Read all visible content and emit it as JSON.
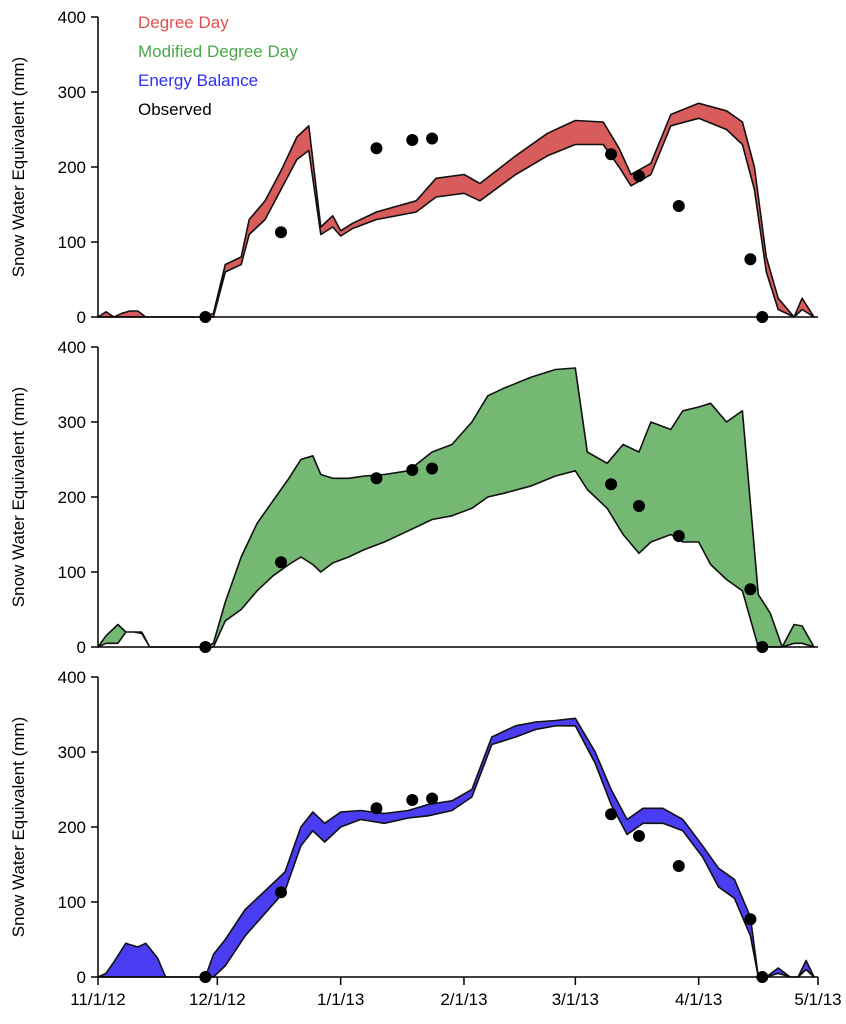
{
  "chart_data": [
    {
      "type": "area",
      "ylabel": "Snow Water Equivalent (mm)",
      "ylim": [
        0,
        400
      ],
      "yticks": [
        0,
        100,
        200,
        300,
        400
      ],
      "x_dates": [
        "11/1/12",
        "5/1/13"
      ],
      "legend": {
        "placement": "top-left",
        "entries": [
          {
            "label": "Degree Day",
            "color": "#e05050"
          },
          {
            "label": "Modified Degree Day",
            "color": "#4aa84a"
          },
          {
            "label": "Energy Balance",
            "color": "#3030f0"
          },
          {
            "label": "Observed",
            "color": "#000000"
          }
        ]
      },
      "series": [
        {
          "name": "Degree Day",
          "color": "#d95c5c",
          "x": [
            "11/1/12",
            "11/3/12",
            "11/5/12",
            "11/7/12",
            "11/9/12",
            "11/11/12",
            "11/13/12",
            "11/28/12",
            "11/30/12",
            "12/3/12",
            "12/7/12",
            "12/9/12",
            "12/13/12",
            "12/17/12",
            "12/21/12",
            "12/24/12",
            "12/27/12",
            "12/30/12",
            "1/1/13",
            "1/4/13",
            "1/10/13",
            "1/20/13",
            "1/25/13",
            "2/1/13",
            "2/5/13",
            "2/14/13",
            "2/22/13",
            "3/1/13",
            "3/8/13",
            "3/12/13",
            "3/15/13",
            "3/20/13",
            "3/25/13",
            "4/1/13",
            "4/8/13",
            "4/12/13",
            "4/15/13",
            "4/18/13",
            "4/21/13",
            "4/25/13",
            "4/27/13",
            "4/30/13"
          ],
          "upper": [
            0,
            7,
            0,
            5,
            8,
            8,
            0,
            0,
            5,
            70,
            80,
            130,
            155,
            195,
            240,
            255,
            120,
            135,
            115,
            125,
            140,
            155,
            185,
            190,
            178,
            215,
            245,
            262,
            260,
            225,
            190,
            205,
            270,
            285,
            275,
            260,
            200,
            80,
            25,
            0,
            25,
            0
          ],
          "lower": [
            0,
            0,
            0,
            0,
            0,
            0,
            0,
            0,
            0,
            60,
            70,
            110,
            130,
            170,
            210,
            222,
            110,
            120,
            108,
            118,
            130,
            140,
            160,
            165,
            155,
            190,
            215,
            230,
            230,
            200,
            175,
            190,
            255,
            265,
            250,
            230,
            170,
            60,
            10,
            0,
            10,
            0
          ]
        },
        {
          "name": "Observed",
          "type": "scatter",
          "x": [
            "11/28/12",
            "12/17/12",
            "1/10/13",
            "1/19/13",
            "1/24/13",
            "3/10/13",
            "3/17/13",
            "3/27/13",
            "4/14/13",
            "4/17/13"
          ],
          "y": [
            0,
            113,
            225,
            236,
            238,
            217,
            188,
            148,
            77,
            0
          ]
        }
      ]
    },
    {
      "type": "area",
      "ylabel": "Snow Water Equivalent (mm)",
      "ylim": [
        0,
        400
      ],
      "yticks": [
        0,
        100,
        200,
        300,
        400
      ],
      "x_dates": [
        "11/1/12",
        "5/1/13"
      ],
      "series": [
        {
          "name": "Modified Degree Day",
          "color": "#74b874",
          "x": [
            "11/1/12",
            "11/3/12",
            "11/6/12",
            "11/8/12",
            "11/10/12",
            "11/12/12",
            "11/14/12",
            "11/28/12",
            "11/30/12",
            "12/3/12",
            "12/7/12",
            "12/11/12",
            "12/15/12",
            "12/19/12",
            "12/22/12",
            "12/25/12",
            "12/27/12",
            "12/30/12",
            "1/3/13",
            "1/7/13",
            "1/12/13",
            "1/18/13",
            "1/24/13",
            "1/29/13",
            "2/3/13",
            "2/7/13",
            "2/11/13",
            "2/18/13",
            "2/24/13",
            "3/1/13",
            "3/4/13",
            "3/9/13",
            "3/13/13",
            "3/17/13",
            "3/20/13",
            "3/25/13",
            "3/28/13",
            "4/1/13",
            "4/4/13",
            "4/8/13",
            "4/12/13",
            "4/16/13",
            "4/19/13",
            "4/22/13",
            "4/25/13",
            "4/27/13",
            "4/30/13"
          ],
          "upper": [
            0,
            15,
            30,
            20,
            20,
            20,
            0,
            0,
            5,
            60,
            120,
            165,
            195,
            225,
            250,
            255,
            230,
            225,
            225,
            228,
            230,
            235,
            260,
            270,
            300,
            335,
            345,
            360,
            370,
            372,
            260,
            245,
            270,
            260,
            300,
            290,
            315,
            320,
            325,
            300,
            315,
            70,
            45,
            0,
            30,
            28,
            0
          ],
          "lower": [
            0,
            5,
            5,
            20,
            20,
            18,
            0,
            0,
            0,
            35,
            50,
            75,
            95,
            110,
            120,
            110,
            100,
            112,
            120,
            130,
            140,
            155,
            170,
            175,
            185,
            200,
            205,
            215,
            228,
            235,
            210,
            185,
            150,
            125,
            140,
            150,
            140,
            140,
            110,
            90,
            75,
            0,
            0,
            0,
            5,
            5,
            0
          ]
        },
        {
          "name": "Observed",
          "type": "scatter",
          "x": [
            "11/28/12",
            "12/17/12",
            "1/10/13",
            "1/19/13",
            "1/24/13",
            "3/10/13",
            "3/17/13",
            "3/27/13",
            "4/14/13",
            "4/17/13"
          ],
          "y": [
            0,
            113,
            225,
            236,
            238,
            217,
            188,
            148,
            77,
            0
          ]
        }
      ]
    },
    {
      "type": "area",
      "ylabel": "Snow Water Equivalent (mm)",
      "ylim": [
        0,
        400
      ],
      "yticks": [
        0,
        100,
        200,
        300,
        400
      ],
      "x_dates": [
        "11/1/12",
        "5/1/13"
      ],
      "xticks": [
        "11/1/12",
        "12/1/12",
        "1/1/13",
        "2/1/13",
        "3/1/13",
        "4/1/13",
        "5/1/13"
      ],
      "series": [
        {
          "name": "Energy Balance",
          "color": "#4a3cf0",
          "x": [
            "11/1/12",
            "11/3/12",
            "11/5/12",
            "11/8/12",
            "11/11/12",
            "11/13/12",
            "11/16/12",
            "11/18/12",
            "11/28/12",
            "11/30/12",
            "12/3/12",
            "12/8/12",
            "12/13/12",
            "12/18/12",
            "12/22/12",
            "12/25/12",
            "12/28/12",
            "1/1/13",
            "1/6/13",
            "1/12/13",
            "1/18/13",
            "1/23/13",
            "1/29/13",
            "2/3/13",
            "2/8/13",
            "2/14/13",
            "2/19/13",
            "2/24/13",
            "3/1/13",
            "3/6/13",
            "3/10/13",
            "3/14/13",
            "3/18/13",
            "3/23/13",
            "3/28/13",
            "4/2/13",
            "4/6/13",
            "4/10/13",
            "4/14/13",
            "4/16/13",
            "4/18/13",
            "4/21/13",
            "4/24/13",
            "4/26/13",
            "4/28/13",
            "4/30/13"
          ],
          "upper": [
            0,
            5,
            20,
            45,
            40,
            45,
            25,
            0,
            0,
            30,
            50,
            90,
            115,
            140,
            200,
            220,
            205,
            220,
            222,
            218,
            222,
            230,
            235,
            250,
            320,
            335,
            340,
            342,
            345,
            300,
            250,
            210,
            225,
            225,
            210,
            175,
            145,
            130,
            80,
            0,
            0,
            12,
            0,
            0,
            22,
            0
          ],
          "lower": [
            0,
            0,
            0,
            0,
            0,
            0,
            0,
            0,
            0,
            0,
            15,
            55,
            85,
            115,
            175,
            195,
            180,
            200,
            210,
            205,
            212,
            215,
            222,
            240,
            310,
            320,
            330,
            335,
            335,
            285,
            230,
            190,
            205,
            205,
            195,
            160,
            120,
            105,
            55,
            0,
            0,
            5,
            0,
            0,
            10,
            0
          ]
        },
        {
          "name": "Observed",
          "type": "scatter",
          "x": [
            "11/28/12",
            "12/17/12",
            "1/10/13",
            "1/19/13",
            "1/24/13",
            "3/10/13",
            "3/17/13",
            "3/27/13",
            "4/14/13",
            "4/17/13"
          ],
          "y": [
            0,
            113,
            225,
            236,
            238,
            217,
            188,
            148,
            77,
            0
          ]
        }
      ]
    }
  ]
}
